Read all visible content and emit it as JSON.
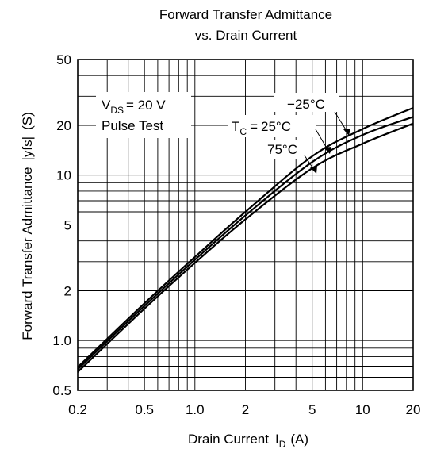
{
  "chart_data": {
    "type": "line",
    "title_line1": "Forward Transfer Admittance",
    "title_line2": "vs. Drain Current",
    "xlabel": "Drain Current",
    "xlabel_symbol": "I",
    "xlabel_sub": "D",
    "xlabel_unit": "(A)",
    "ylabel": "Forward Transfer Admittance",
    "ylabel_symbol": "|yfs|",
    "ylabel_unit": "(S)",
    "x_scale": "log",
    "y_scale": "log",
    "xlim": [
      0.2,
      20
    ],
    "ylim": [
      0.5,
      50
    ],
    "grid": true,
    "x_ticks": [
      {
        "value": 0.2,
        "label": "0.2"
      },
      {
        "value": 0.5,
        "label": "0.5"
      },
      {
        "value": 1,
        "label": "1.0"
      },
      {
        "value": 2,
        "label": "2"
      },
      {
        "value": 5,
        "label": "5"
      },
      {
        "value": 10,
        "label": "10"
      },
      {
        "value": 20,
        "label": "20"
      }
    ],
    "y_ticks": [
      {
        "value": 0.5,
        "label": "0.5"
      },
      {
        "value": 1,
        "label": "1.0"
      },
      {
        "value": 2,
        "label": "2"
      },
      {
        "value": 5,
        "label": "5"
      },
      {
        "value": 10,
        "label": "10"
      },
      {
        "value": 20,
        "label": "20"
      },
      {
        "value": 50,
        "label": "50"
      }
    ],
    "conditions": {
      "vds_symbol": "V",
      "vds_sub": "DS",
      "vds_value": "= 20 V",
      "pulse": "Pulse Test"
    },
    "tc_symbol": "T",
    "tc_sub": "C",
    "tc_prefix": "=",
    "series": [
      {
        "name": "−25°C",
        "x": [
          0.2,
          0.5,
          1,
          2,
          5,
          10,
          20
        ],
        "y": [
          0.69,
          1.68,
          3.2,
          6.0,
          13.0,
          19.0,
          25.5
        ]
      },
      {
        "name": "25°C",
        "x": [
          0.2,
          0.5,
          1,
          2,
          5,
          10,
          20
        ],
        "y": [
          0.67,
          1.62,
          3.08,
          5.7,
          12.0,
          17.5,
          22.5
        ]
      },
      {
        "name": "75°C",
        "x": [
          0.2,
          0.5,
          1,
          2,
          5,
          10,
          20
        ],
        "y": [
          0.645,
          1.56,
          2.95,
          5.4,
          11.0,
          15.5,
          20.5
        ]
      }
    ]
  }
}
